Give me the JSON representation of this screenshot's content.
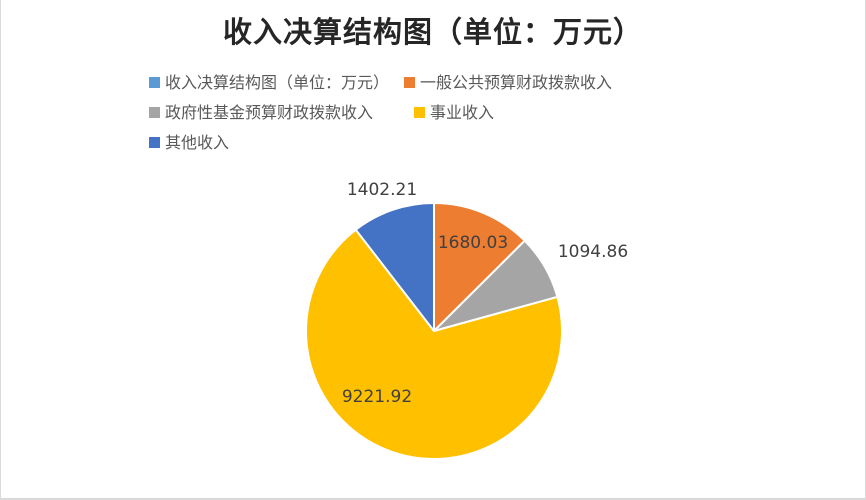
{
  "frame": {
    "background": "#ffffff",
    "border_color": "#d9d9d9"
  },
  "chart_data": {
    "type": "pie",
    "title": "收入决算结构图（单位：万元）",
    "title_color": "#262626",
    "legend_position": "top",
    "legend_text_color": "#595959",
    "label_text_color": "#404040",
    "start_angle_deg": 0,
    "direction": "clockwise",
    "total": 13399.02,
    "legend": [
      {
        "label": "收入决算结构图（单位：万元）",
        "color": "#5B9BD5"
      },
      {
        "label": "一般公共预算财政拨款收入",
        "color": "#ED7D31"
      },
      {
        "label": "政府性基金预算财政拨款收入",
        "color": "#A5A5A5"
      },
      {
        "label": "事业收入",
        "color": "#FFC000"
      },
      {
        "label": "其他收入",
        "color": "#4472C4"
      }
    ],
    "slices": [
      {
        "label": "一般公共预算财政拨款收入",
        "value": 1680.03,
        "display": "1680.03",
        "color": "#ED7D31"
      },
      {
        "label": "政府性基金预算财政拨款收入",
        "value": 1094.86,
        "display": "1094.86",
        "color": "#A5A5A5"
      },
      {
        "label": "事业收入",
        "value": 9221.92,
        "display": "9221.92",
        "color": "#FFC000"
      },
      {
        "label": "其他收入",
        "value": 1402.21,
        "display": "1402.21",
        "color": "#4472C4"
      }
    ]
  }
}
